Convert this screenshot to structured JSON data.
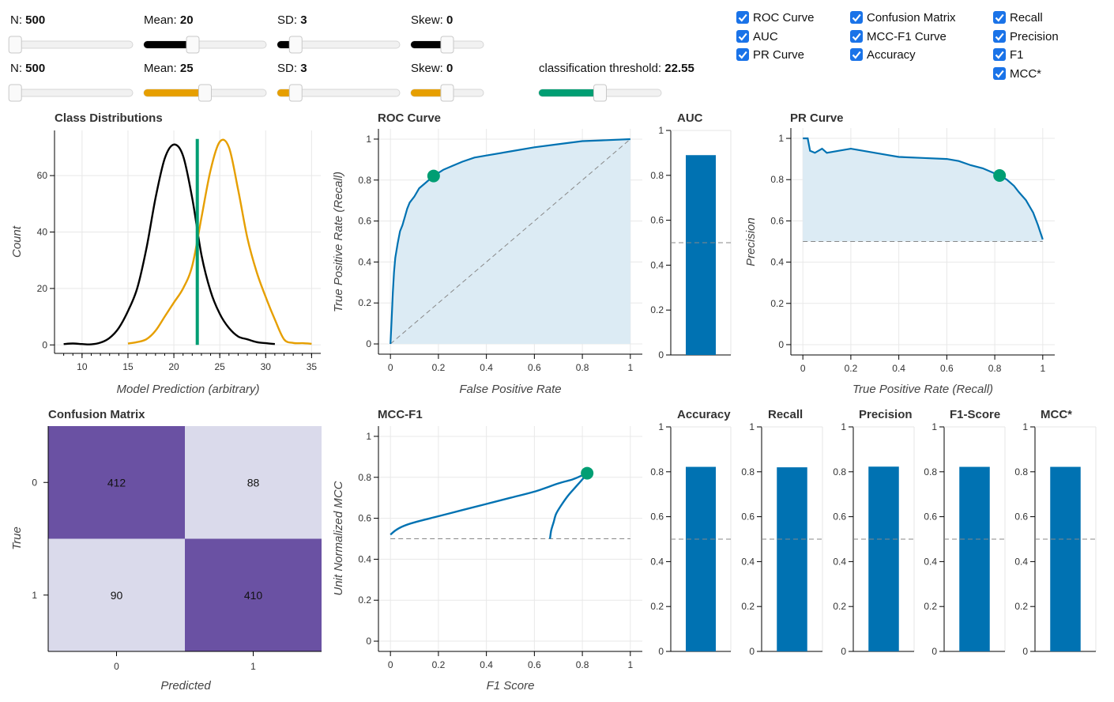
{
  "controls": {
    "row1": [
      {
        "label": "N:",
        "value": "500",
        "fraction": 0.04,
        "color": "#000000"
      },
      {
        "label": "Mean:",
        "value": "20",
        "fraction": 0.4,
        "color": "#000000"
      },
      {
        "label": "SD:",
        "value": "3",
        "fraction": 0.15,
        "color": "#000000"
      },
      {
        "label": "Skew:",
        "value": "0",
        "fraction": 0.5,
        "color": "#000000"
      }
    ],
    "row2": [
      {
        "label": "N:",
        "value": "500",
        "fraction": 0.04,
        "color": "#E69F00"
      },
      {
        "label": "Mean:",
        "value": "25",
        "fraction": 0.5,
        "color": "#E69F00"
      },
      {
        "label": "SD:",
        "value": "3",
        "fraction": 0.15,
        "color": "#E69F00"
      },
      {
        "label": "Skew:",
        "value": "0",
        "fraction": 0.5,
        "color": "#E69F00"
      }
    ],
    "threshold": {
      "label": "classification threshold:",
      "value": "22.55",
      "fraction": 0.5,
      "color": "#009E73"
    }
  },
  "checkboxes": [
    {
      "label": "ROC Curve",
      "checked": true
    },
    {
      "label": "AUC",
      "checked": true
    },
    {
      "label": "PR Curve",
      "checked": true
    },
    {
      "label": "Confusion Matrix",
      "checked": true
    },
    {
      "label": "MCC-F1 Curve",
      "checked": true
    },
    {
      "label": "Accuracy",
      "checked": true
    },
    {
      "label": "Recall",
      "checked": true
    },
    {
      "label": "Precision",
      "checked": true
    },
    {
      "label": "F1",
      "checked": true
    },
    {
      "label": "MCC*",
      "checked": true
    }
  ],
  "chart_data": [
    {
      "type": "line",
      "title": "Class Distributions",
      "xlabel": "Model Prediction (arbitrary)",
      "ylabel": "Count",
      "xlim": [
        7,
        36
      ],
      "ylim": [
        -3,
        76
      ],
      "xticks": [
        "10",
        "15",
        "20",
        "25",
        "30",
        "35"
      ],
      "yticks": [
        "0",
        "20",
        "40",
        "60"
      ],
      "series": [
        {
          "color": "#000000",
          "x": [
            8,
            9,
            10,
            11,
            12,
            13,
            14,
            15,
            16,
            17,
            18,
            19,
            20,
            21,
            22,
            23,
            24,
            25,
            26,
            27,
            28,
            29,
            30,
            31
          ],
          "y": [
            0.3,
            0.5,
            0.3,
            0.2,
            0.8,
            2.5,
            6,
            12,
            20,
            34,
            52,
            66,
            71,
            67,
            52,
            32,
            19,
            11,
            6,
            3,
            2,
            1,
            0.6,
            0.3
          ]
        },
        {
          "color": "#E69F00",
          "x": [
            15,
            16,
            17,
            18,
            19,
            20,
            21,
            22,
            23,
            24,
            25,
            26,
            27,
            28,
            29,
            30,
            31,
            32,
            33,
            34,
            35
          ],
          "y": [
            0.5,
            1,
            2,
            5,
            10,
            15,
            20,
            28,
            45,
            62,
            72,
            70,
            55,
            38,
            26,
            17,
            9,
            2,
            0.7,
            0.6,
            0.4
          ]
        }
      ],
      "threshold_x": 22.55,
      "threshold_color": "#009E73"
    },
    {
      "type": "area",
      "title": "ROC Curve",
      "xlabel": "False Positive Rate",
      "ylabel": "True Positive Rate (Recall)",
      "xlim": [
        -0.05,
        1.05
      ],
      "ylim": [
        -0.05,
        1.05
      ],
      "xticks": [
        "0",
        "0.2",
        "0.4",
        "0.6",
        "0.8",
        "1"
      ],
      "yticks": [
        "0",
        "0.2",
        "0.4",
        "0.6",
        "0.8",
        "1"
      ],
      "x": [
        0,
        0.005,
        0.01,
        0.015,
        0.02,
        0.03,
        0.04,
        0.05,
        0.06,
        0.07,
        0.08,
        0.1,
        0.12,
        0.15,
        0.18,
        0.22,
        0.26,
        0.3,
        0.35,
        0.4,
        0.5,
        0.6,
        0.7,
        0.8,
        0.9,
        1.0
      ],
      "y": [
        0,
        0.12,
        0.25,
        0.35,
        0.42,
        0.49,
        0.55,
        0.58,
        0.62,
        0.66,
        0.69,
        0.72,
        0.76,
        0.79,
        0.82,
        0.85,
        0.87,
        0.89,
        0.91,
        0.92,
        0.94,
        0.96,
        0.975,
        0.99,
        0.995,
        1.0
      ],
      "point": [
        0.18,
        0.82
      ],
      "diagonal": true
    },
    {
      "type": "bar",
      "title": "AUC",
      "value": 0.89,
      "ylim": [
        0,
        1
      ],
      "yticks": [
        "0",
        "0.2",
        "0.4",
        "0.6",
        "0.8",
        "1"
      ],
      "baseline": 0.5
    },
    {
      "type": "area",
      "title": "PR Curve",
      "xlabel": "True Positive Rate (Recall)",
      "ylabel": "Precision",
      "xlim": [
        -0.05,
        1.05
      ],
      "ylim": [
        -0.05,
        1.05
      ],
      "xticks": [
        "0",
        "0.2",
        "0.4",
        "0.6",
        "0.8",
        "1"
      ],
      "yticks": [
        "0",
        "0.2",
        "0.4",
        "0.6",
        "0.8",
        "1"
      ],
      "x": [
        0,
        0.02,
        0.03,
        0.05,
        0.08,
        0.1,
        0.15,
        0.2,
        0.25,
        0.3,
        0.35,
        0.4,
        0.5,
        0.6,
        0.65,
        0.7,
        0.75,
        0.8,
        0.82,
        0.85,
        0.88,
        0.9,
        0.93,
        0.96,
        0.98,
        1.0
      ],
      "y": [
        1.0,
        1.0,
        0.94,
        0.93,
        0.95,
        0.93,
        0.94,
        0.95,
        0.94,
        0.93,
        0.92,
        0.91,
        0.905,
        0.9,
        0.89,
        0.87,
        0.855,
        0.83,
        0.82,
        0.8,
        0.77,
        0.74,
        0.7,
        0.64,
        0.58,
        0.51
      ],
      "point": [
        0.82,
        0.82
      ],
      "baseline": 0.5
    },
    {
      "type": "heatmap",
      "title": "Confusion Matrix",
      "xlabel": "Predicted",
      "ylabel": "True",
      "xticks": [
        "0",
        "1"
      ],
      "yticks": [
        "0",
        "1"
      ],
      "cells": [
        [
          "412",
          "88"
        ],
        [
          "90",
          "410"
        ]
      ],
      "values": [
        [
          412,
          88
        ],
        [
          90,
          410
        ]
      ]
    },
    {
      "type": "line",
      "title": "MCC-F1",
      "xlabel": "F1 Score",
      "ylabel": "Unit Normalized MCC",
      "xlim": [
        -0.05,
        1.05
      ],
      "ylim": [
        -0.05,
        1.05
      ],
      "xticks": [
        "0",
        "0.2",
        "0.4",
        "0.6",
        "0.8",
        "1"
      ],
      "yticks": [
        "0",
        "0.2",
        "0.4",
        "0.6",
        "0.8",
        "1"
      ],
      "x": [
        0.0,
        0.02,
        0.05,
        0.1,
        0.2,
        0.3,
        0.4,
        0.5,
        0.6,
        0.7,
        0.76,
        0.8,
        0.82,
        0.8,
        0.77,
        0.74,
        0.71,
        0.69,
        0.68,
        0.67,
        0.665
      ],
      "y": [
        0.52,
        0.54,
        0.56,
        0.58,
        0.61,
        0.64,
        0.67,
        0.7,
        0.73,
        0.77,
        0.79,
        0.81,
        0.82,
        0.79,
        0.75,
        0.71,
        0.66,
        0.62,
        0.58,
        0.54,
        0.5
      ],
      "point": [
        0.82,
        0.82
      ],
      "baseline": 0.5
    },
    {
      "type": "bar",
      "title": "Accuracy",
      "value": 0.822,
      "ylim": [
        0,
        1
      ],
      "yticks": [
        "0",
        "0.2",
        "0.4",
        "0.6",
        "0.8",
        "1"
      ],
      "baseline": 0.5
    },
    {
      "type": "bar",
      "title": "Recall",
      "value": 0.82,
      "ylim": [
        0,
        1
      ],
      "yticks": [
        "0",
        "0.2",
        "0.4",
        "0.6",
        "0.8",
        "1"
      ],
      "baseline": 0.5
    },
    {
      "type": "bar",
      "title": "Precision",
      "value": 0.823,
      "ylim": [
        0,
        1
      ],
      "yticks": [
        "0",
        "0.2",
        "0.4",
        "0.6",
        "0.8",
        "1"
      ],
      "baseline": 0.5
    },
    {
      "type": "bar",
      "title": "F1-Score",
      "value": 0.822,
      "ylim": [
        0,
        1
      ],
      "yticks": [
        "0",
        "0.2",
        "0.4",
        "0.6",
        "0.8",
        "1"
      ],
      "baseline": 0.5
    },
    {
      "type": "bar",
      "title": "MCC*",
      "value": 0.822,
      "ylim": [
        0,
        1
      ],
      "yticks": [
        "0",
        "0.2",
        "0.4",
        "0.6",
        "0.8",
        "1"
      ],
      "baseline": 0.5
    }
  ],
  "colors": {
    "line": "#0072B2",
    "area": "#dcebf4",
    "point": "#009E73",
    "cm_dark": "#6a51a3",
    "cm_light": "#dadaeb",
    "grid": "#e8e8e8"
  }
}
